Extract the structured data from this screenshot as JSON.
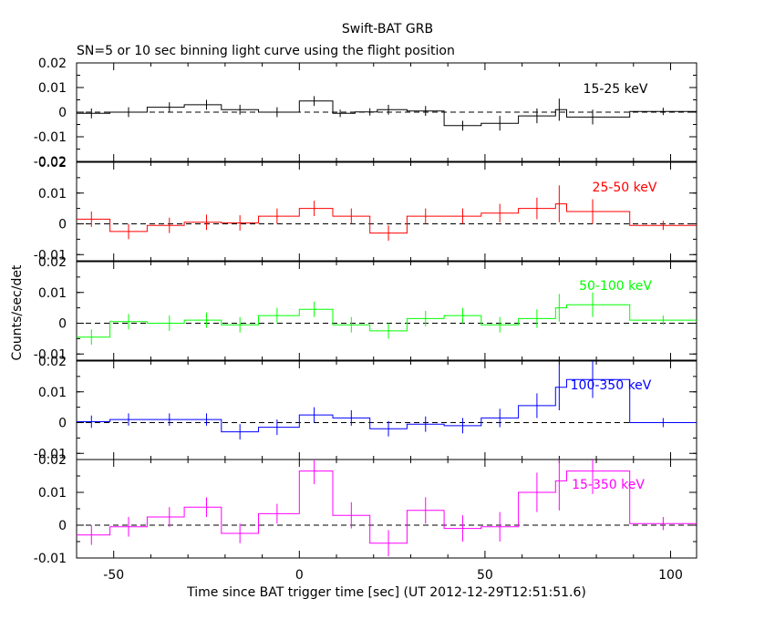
{
  "title": "Swift-BAT GRB",
  "subtitle": "SN=5 or 10 sec binning light curve using the flight position",
  "xlabel": "Time since BAT trigger time [sec] (UT 2012-12-29T12:51:51.6)",
  "ylabel": "Counts/sec/det",
  "chart_data": {
    "type": "line",
    "drawstyle": "steps-mid with error bars",
    "xlim": [
      -60,
      107
    ],
    "xticks": [
      -50,
      0,
      50,
      100
    ],
    "xtick_labels": [
      "-50",
      "0",
      "50",
      "100"
    ],
    "grid": false,
    "zero_line": "dashed",
    "panels": [
      {
        "name": "15-25 keV",
        "color": "#000000",
        "ylim": [
          -0.02,
          0.02
        ],
        "yticks": [
          -0.02,
          -0.01,
          0,
          0.01,
          0.02
        ],
        "ytick_labels": [
          "-0.02",
          "-0.01",
          "0",
          "0.01",
          "0.02"
        ],
        "x": [
          -56,
          -46,
          -35,
          -25,
          -16,
          -6,
          4,
          11,
          19,
          24,
          34,
          44,
          54,
          64,
          70,
          79,
          98
        ],
        "x_lo": [
          -60,
          -51,
          -41,
          -31,
          -21,
          -11,
          0,
          9,
          15,
          21,
          29,
          39,
          49,
          59,
          69,
          72,
          89
        ],
        "x_hi": [
          -51,
          -41,
          -31,
          -21,
          -11,
          0,
          9,
          15,
          21,
          29,
          39,
          49,
          59,
          69,
          72,
          89,
          107
        ],
        "y": [
          -0.0005,
          0,
          0.002,
          0.003,
          0.001,
          0,
          0.0045,
          -0.0005,
          0.0001,
          0.001,
          0.0005,
          -0.0055,
          -0.0045,
          -0.0015,
          0.001,
          -0.002,
          0.0003
        ],
        "yerr": [
          0.002,
          0.002,
          0.002,
          0.002,
          0.002,
          0.002,
          0.002,
          0.0015,
          0.0015,
          0.002,
          0.002,
          0.002,
          0.003,
          0.003,
          0.0045,
          0.003,
          0.0015
        ]
      },
      {
        "name": "25-50 keV",
        "color": "#ff0000",
        "ylim": [
          -0.012,
          0.02
        ],
        "yticks": [
          -0.01,
          0,
          0.01,
          0.02
        ],
        "ytick_labels": [
          "-0.01",
          "0",
          "0.01",
          "0.02"
        ],
        "x": [
          -56,
          -46,
          -35,
          -25,
          -16,
          -6,
          4,
          14,
          24,
          34,
          44,
          54,
          64,
          70,
          79,
          98
        ],
        "x_lo": [
          -60,
          -51,
          -41,
          -31,
          -21,
          -11,
          0,
          9,
          19,
          29,
          39,
          49,
          59,
          69,
          72,
          89
        ],
        "x_hi": [
          -51,
          -41,
          -31,
          -21,
          -11,
          0,
          9,
          19,
          29,
          39,
          49,
          59,
          69,
          72,
          89,
          107
        ],
        "y": [
          0.0015,
          -0.0025,
          -0.0005,
          0.0005,
          0.0003,
          0.0025,
          0.005,
          0.0025,
          -0.003,
          0.0025,
          0.0025,
          0.0035,
          0.005,
          0.0065,
          0.004,
          -0.0005
        ],
        "yerr": [
          0.0025,
          0.0025,
          0.0025,
          0.0025,
          0.0025,
          0.0025,
          0.0025,
          0.0025,
          0.0025,
          0.0025,
          0.0025,
          0.003,
          0.0035,
          0.006,
          0.004,
          0.0015
        ]
      },
      {
        "name": "50-100 keV",
        "color": "#00ff00",
        "ylim": [
          -0.012,
          0.02
        ],
        "yticks": [
          -0.01,
          0,
          0.01,
          0.02
        ],
        "ytick_labels": [
          "-0.01",
          "0",
          "0.01",
          "0.02"
        ],
        "x": [
          -56,
          -46,
          -35,
          -25,
          -16,
          -6,
          4,
          14,
          24,
          34,
          44,
          54,
          64,
          70,
          79,
          98
        ],
        "x_lo": [
          -60,
          -51,
          -41,
          -31,
          -21,
          -11,
          0,
          9,
          19,
          29,
          39,
          49,
          59,
          69,
          72,
          89
        ],
        "x_hi": [
          -51,
          -41,
          -31,
          -21,
          -11,
          0,
          9,
          19,
          29,
          39,
          49,
          59,
          69,
          72,
          89,
          107
        ],
        "y": [
          -0.0045,
          0.0005,
          0,
          0.001,
          -0.0005,
          0.0025,
          0.0045,
          -0.0005,
          -0.0025,
          0.0015,
          0.0025,
          -0.0005,
          0.0015,
          0.005,
          0.006,
          0.001
        ],
        "yerr": [
          0.0025,
          0.0025,
          0.0025,
          0.0025,
          0.0025,
          0.0025,
          0.0025,
          0.0025,
          0.0025,
          0.0025,
          0.0025,
          0.0025,
          0.003,
          0.0045,
          0.004,
          0.0015
        ]
      },
      {
        "name": "100-350 keV",
        "color": "#0000ff",
        "ylim": [
          -0.012,
          0.02
        ],
        "yticks": [
          -0.01,
          0,
          0.01,
          0.02
        ],
        "ytick_labels": [
          "-0.01",
          "0",
          "0.01",
          "0.02"
        ],
        "x": [
          -56,
          -46,
          -35,
          -25,
          -16,
          -6,
          4,
          14,
          24,
          34,
          44,
          54,
          64,
          70,
          79,
          98
        ],
        "x_lo": [
          -60,
          -51,
          -41,
          -31,
          -21,
          -11,
          0,
          9,
          19,
          29,
          39,
          49,
          59,
          69,
          72,
          89
        ],
        "x_hi": [
          -51,
          -41,
          -31,
          -21,
          -11,
          0,
          9,
          19,
          29,
          39,
          49,
          59,
          69,
          72,
          89,
          107
        ],
        "y": [
          0.0003,
          0.001,
          0.001,
          0.001,
          -0.003,
          -0.0015,
          0.0025,
          0.0015,
          -0.002,
          -0.0005,
          -0.001,
          0.0015,
          0.0055,
          0.0115,
          0.014,
          0
        ],
        "yerr": [
          0.002,
          0.002,
          0.002,
          0.002,
          0.0025,
          0.0025,
          0.0025,
          0.0025,
          0.0025,
          0.0025,
          0.0025,
          0.003,
          0.004,
          0.0075,
          0.006,
          0.0015
        ]
      },
      {
        "name": "15-350 keV",
        "color": "#ff00ff",
        "ylim": [
          -0.01,
          0.02
        ],
        "yticks": [
          -0.01,
          0,
          0.01,
          0.02
        ],
        "ytick_labels": [
          "-0.01",
          "0",
          "0.01",
          "0.02"
        ],
        "x": [
          -56,
          -46,
          -35,
          -25,
          -16,
          -6,
          4,
          14,
          24,
          34,
          44,
          54,
          64,
          70,
          79,
          98
        ],
        "x_lo": [
          -60,
          -51,
          -41,
          -31,
          -21,
          -11,
          0,
          9,
          19,
          29,
          39,
          49,
          59,
          69,
          72,
          89
        ],
        "x_hi": [
          -51,
          -41,
          -31,
          -21,
          -11,
          0,
          9,
          19,
          29,
          39,
          49,
          59,
          69,
          72,
          89,
          107
        ],
        "y": [
          -0.003,
          -0.0005,
          0.0025,
          0.0055,
          -0.0025,
          0.0035,
          0.0165,
          0.003,
          -0.0055,
          0.0045,
          -0.001,
          -0.0005,
          0.01,
          0.0135,
          0.0165,
          0.0005
        ],
        "yerr": [
          0.003,
          0.003,
          0.003,
          0.003,
          0.003,
          0.003,
          0.004,
          0.004,
          0.004,
          0.004,
          0.004,
          0.0045,
          0.006,
          0.009,
          0.007,
          0.002
        ]
      }
    ]
  }
}
